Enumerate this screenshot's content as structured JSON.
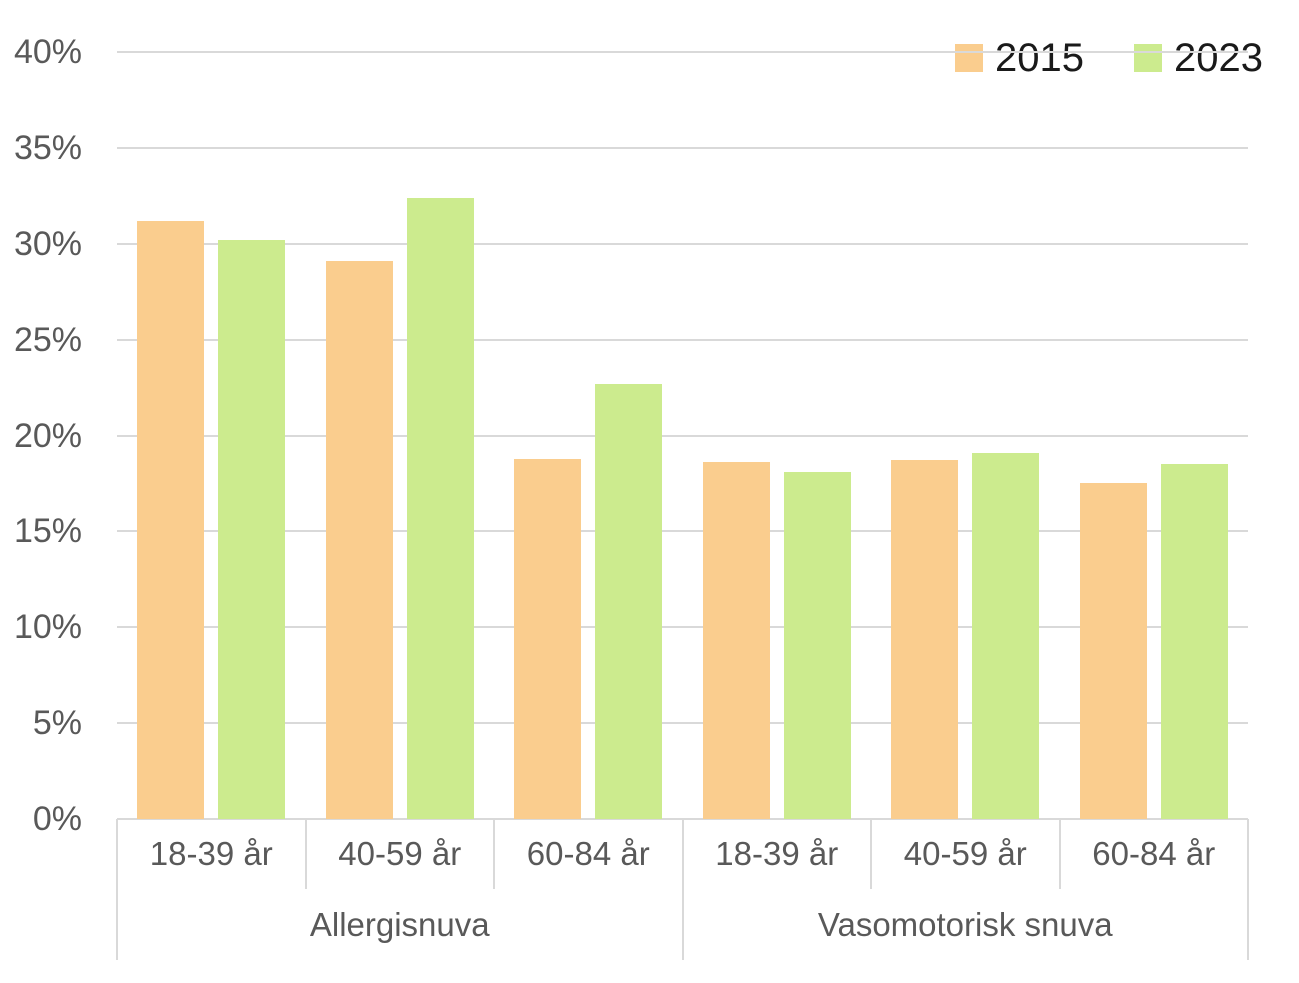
{
  "chart_data": {
    "type": "bar",
    "title": "",
    "categories": [
      "18-39 år",
      "40-59 år",
      "60-84 år",
      "18-39 år",
      "40-59 år",
      "60-84 år"
    ],
    "groups": [
      {
        "label": "Allergisnuva",
        "span": 3
      },
      {
        "label": "Vasomotorisk snuva",
        "span": 3
      }
    ],
    "series": [
      {
        "name": "2015",
        "color": "#FACD8E",
        "values": [
          31.2,
          29.1,
          18.8,
          18.6,
          18.7,
          17.5
        ]
      },
      {
        "name": "2023",
        "color": "#CCEB8E",
        "values": [
          30.2,
          32.4,
          22.7,
          18.1,
          19.1,
          18.5
        ]
      }
    ],
    "ylim": [
      0,
      40
    ],
    "yticks": [
      {
        "value": 0,
        "label": "0%"
      },
      {
        "value": 5,
        "label": "5%"
      },
      {
        "value": 10,
        "label": "10%"
      },
      {
        "value": 15,
        "label": "15%"
      },
      {
        "value": 20,
        "label": "20%"
      },
      {
        "value": 25,
        "label": "25%"
      },
      {
        "value": 30,
        "label": "30%"
      },
      {
        "value": 35,
        "label": "35%"
      },
      {
        "value": 40,
        "label": "40%"
      }
    ],
    "grid": true,
    "legend_position": "top-right",
    "legend": [
      "2015",
      "2023"
    ]
  },
  "colors": {
    "background": "#FFFFFF",
    "series_2015": "#FACD8E",
    "series_2023": "#CCEB8E",
    "gridline": "#D9D9D9",
    "axis_line": "#D9D9D9",
    "tick_text": "#595959",
    "legend_text": "#1A1A1A"
  }
}
